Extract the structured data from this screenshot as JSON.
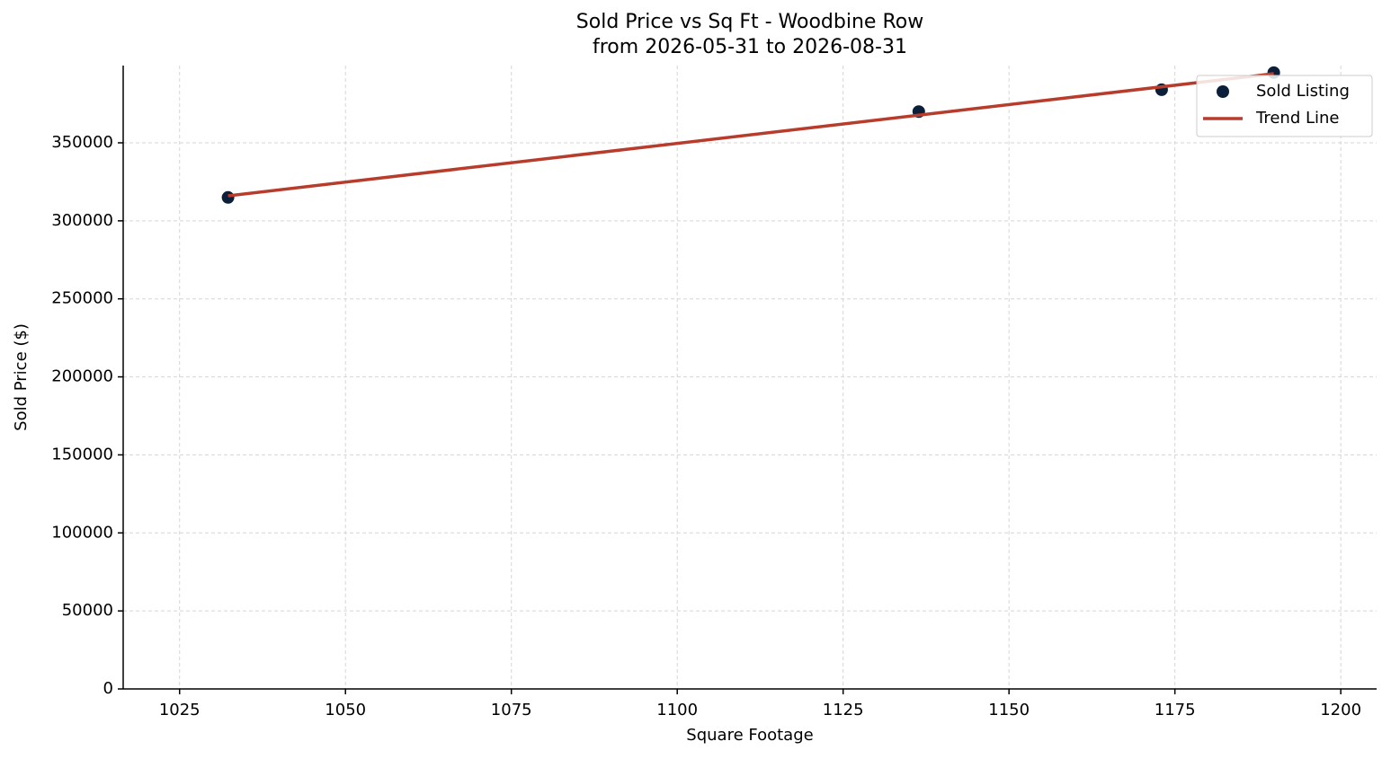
{
  "chart_data": {
    "type": "scatter",
    "title": "Sold Price vs Sq Ft - Woodbine Row",
    "subtitle": "from 2026-05-31 to 2026-08-31",
    "x_label": "Square Footage",
    "y_label": "Sold Price ($)",
    "series": [
      {
        "name": "Sold Listing",
        "type": "scatter",
        "color": "#0b1f3a",
        "x": [
          1032.3,
          1136.4,
          1173.0,
          1189.9
        ],
        "values": [
          315000,
          370000,
          384000,
          395000
        ]
      },
      {
        "name": "Trend Line",
        "type": "line",
        "color": "#b83c2b",
        "x": [
          1032.3,
          1189.9
        ],
        "values": [
          316000,
          394300
        ]
      }
    ],
    "xlim": [
      1016.5,
      1205.4
    ],
    "ylim": [
      0,
      399500
    ],
    "xticks": [
      1025,
      1050,
      1075,
      1100,
      1125,
      1150,
      1175,
      1200
    ],
    "yticks": [
      0,
      50000,
      100000,
      150000,
      200000,
      250000,
      300000,
      350000
    ],
    "grid": true,
    "legend": "upper right"
  }
}
